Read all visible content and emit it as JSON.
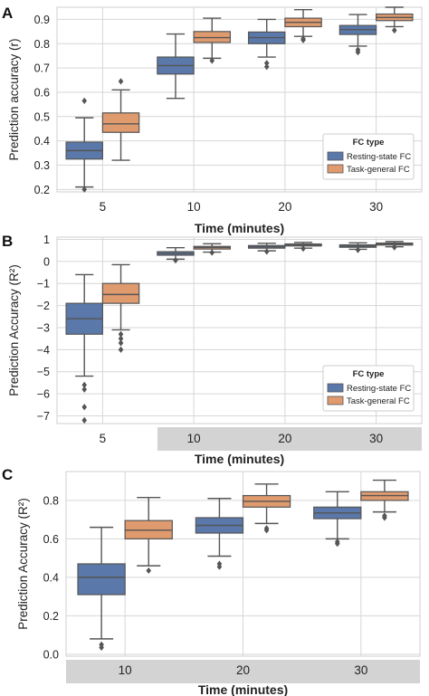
{
  "colors": {
    "resting": "#5a78a9",
    "task": "#df9a6e",
    "whisker": "#555555",
    "grid": "#d6d6d6",
    "band": "#d3d3d3"
  },
  "legend_items": [
    {
      "label": "Resting-state FC",
      "color": "#5a78a9"
    },
    {
      "label": "Task-general FC",
      "color": "#df9a6e"
    }
  ],
  "chart_data": [
    {
      "panel_letter": "A",
      "type": "box",
      "ylabel": "Prediction accuracy (r)",
      "xlabel": "Time (minutes)",
      "categories": [
        "5",
        "10",
        "20",
        "30"
      ],
      "yticks": [
        0.2,
        0.3,
        0.4,
        0.5,
        0.6,
        0.7,
        0.8,
        0.9
      ],
      "ytick_labels": [
        "0.2",
        "0.3",
        "0.4",
        "0.5",
        "0.6",
        "0.7",
        "0.8",
        "0.9"
      ],
      "ylim": [
        0.19,
        0.95
      ],
      "grid": true,
      "legend_title": "FC type",
      "legend_position": "lower-right",
      "shaded_categories": [],
      "series": [
        {
          "name": "Resting-state FC",
          "boxes": [
            {
              "min": 0.21,
              "q1": 0.325,
              "median": 0.36,
              "q3": 0.395,
              "max": 0.495,
              "outliers": [
                0.2,
                0.565
              ]
            },
            {
              "min": 0.575,
              "q1": 0.675,
              "median": 0.71,
              "q3": 0.745,
              "max": 0.84,
              "outliers": []
            },
            {
              "min": 0.745,
              "q1": 0.8,
              "median": 0.825,
              "q3": 0.848,
              "max": 0.9,
              "outliers": [
                0.705,
                0.72
              ]
            },
            {
              "min": 0.79,
              "q1": 0.838,
              "median": 0.858,
              "q3": 0.875,
              "max": 0.92,
              "outliers": [
                0.765,
                0.775
              ]
            }
          ]
        },
        {
          "name": "Task-general FC",
          "boxes": [
            {
              "min": 0.32,
              "q1": 0.435,
              "median": 0.47,
              "q3": 0.515,
              "max": 0.61,
              "outliers": [
                0.645
              ]
            },
            {
              "min": 0.74,
              "q1": 0.805,
              "median": 0.825,
              "q3": 0.85,
              "max": 0.905,
              "outliers": [
                0.73
              ]
            },
            {
              "min": 0.83,
              "q1": 0.87,
              "median": 0.888,
              "q3": 0.905,
              "max": 0.94,
              "outliers": [
                0.815,
                0.82
              ]
            },
            {
              "min": 0.87,
              "q1": 0.895,
              "median": 0.908,
              "q3": 0.922,
              "max": 0.95,
              "outliers": [
                0.855
              ]
            }
          ]
        }
      ]
    },
    {
      "panel_letter": "B",
      "type": "box",
      "ylabel": "Prediction Accuracy (R²)",
      "xlabel": "Time (minutes)",
      "categories": [
        "5",
        "10",
        "20",
        "30"
      ],
      "yticks": [
        -7,
        -6,
        -5,
        -4,
        -3,
        -2,
        -1,
        0,
        1
      ],
      "ytick_labels": [
        "−7",
        "−6",
        "−5",
        "−4",
        "−3",
        "−2",
        "−1",
        "0",
        "1"
      ],
      "ylim": [
        -7.35,
        1.1
      ],
      "grid": true,
      "legend_title": "FC type",
      "legend_position": "lower-right",
      "shaded_categories": [
        "10",
        "20",
        "30"
      ],
      "series": [
        {
          "name": "Resting-state FC",
          "boxes": [
            {
              "min": -5.2,
              "q1": -3.3,
              "median": -2.6,
              "q3": -1.9,
              "max": -0.6,
              "outliers": [
                -5.6,
                -5.8,
                -6.6,
                -7.2
              ]
            },
            {
              "min": 0.1,
              "q1": 0.28,
              "median": 0.36,
              "q3": 0.44,
              "max": 0.62,
              "outliers": [
                0.05
              ]
            },
            {
              "min": 0.48,
              "q1": 0.6,
              "median": 0.66,
              "q3": 0.72,
              "max": 0.82,
              "outliers": [
                0.45
              ]
            },
            {
              "min": 0.55,
              "q1": 0.64,
              "median": 0.69,
              "q3": 0.75,
              "max": 0.84,
              "outliers": [
                0.52
              ]
            }
          ]
        },
        {
          "name": "Task-general FC",
          "boxes": [
            {
              "min": -3.1,
              "q1": -1.9,
              "median": -1.5,
              "q3": -1.0,
              "max": -0.15,
              "outliers": [
                -3.3,
                -3.5,
                -3.7,
                -4.0
              ]
            },
            {
              "min": 0.42,
              "q1": 0.56,
              "median": 0.63,
              "q3": 0.68,
              "max": 0.8,
              "outliers": [
                0.4
              ]
            },
            {
              "min": 0.6,
              "q1": 0.7,
              "median": 0.74,
              "q3": 0.79,
              "max": 0.86,
              "outliers": [
                0.58
              ]
            },
            {
              "min": 0.66,
              "q1": 0.74,
              "median": 0.79,
              "q3": 0.83,
              "max": 0.9,
              "outliers": [
                0.64
              ]
            }
          ]
        }
      ]
    },
    {
      "panel_letter": "C",
      "type": "box",
      "ylabel": "Prediction Accuracy (R²)",
      "xlabel": "Time (minutes)",
      "categories": [
        "10",
        "20",
        "30"
      ],
      "yticks": [
        0.0,
        0.2,
        0.4,
        0.6,
        0.8
      ],
      "ytick_labels": [
        "0.0",
        "0.2",
        "0.4",
        "0.6",
        "0.8"
      ],
      "ylim": [
        -0.01,
        0.95
      ],
      "grid": true,
      "legend_title": "",
      "legend_position": "",
      "shaded_categories": [
        "10",
        "20",
        "30"
      ],
      "series": [
        {
          "name": "Resting-state FC",
          "boxes": [
            {
              "min": 0.08,
              "q1": 0.31,
              "median": 0.4,
              "q3": 0.47,
              "max": 0.66,
              "outliers": [
                0.05,
                0.035
              ]
            },
            {
              "min": 0.51,
              "q1": 0.63,
              "median": 0.67,
              "q3": 0.71,
              "max": 0.81,
              "outliers": [
                0.47,
                0.455
              ]
            },
            {
              "min": 0.6,
              "q1": 0.705,
              "median": 0.735,
              "q3": 0.765,
              "max": 0.845,
              "outliers": [
                0.585,
                0.575
              ]
            }
          ]
        },
        {
          "name": "Task-general FC",
          "boxes": [
            {
              "min": 0.46,
              "q1": 0.6,
              "median": 0.645,
              "q3": 0.695,
              "max": 0.815,
              "outliers": [
                0.435
              ]
            },
            {
              "min": 0.68,
              "q1": 0.765,
              "median": 0.795,
              "q3": 0.825,
              "max": 0.885,
              "outliers": [
                0.655,
                0.645
              ]
            },
            {
              "min": 0.74,
              "q1": 0.8,
              "median": 0.825,
              "q3": 0.845,
              "max": 0.905,
              "outliers": [
                0.72,
                0.71
              ]
            }
          ]
        }
      ]
    }
  ]
}
